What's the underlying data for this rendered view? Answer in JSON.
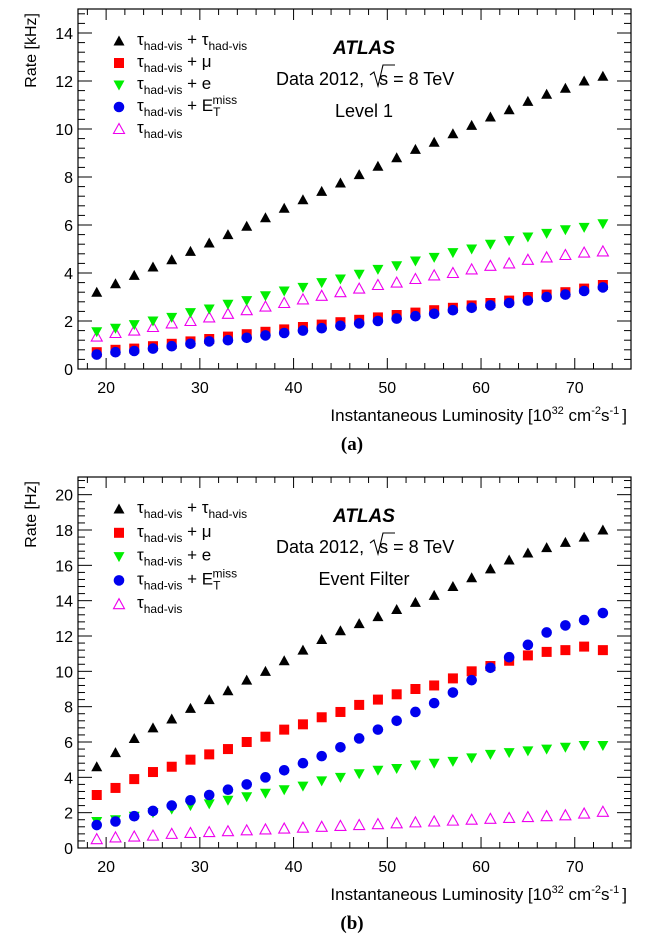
{
  "panels": [
    {
      "caption": "(a)",
      "chart_data": {
        "type": "scatter",
        "title": "",
        "experiment": "ATLAS",
        "run_info": {
          "prefix": "Data 2012,",
          "sqrt": "s",
          "energy": "= 8 TeV"
        },
        "trigger_level": "Level 1",
        "xlabel": {
          "main": "Instantaneous Luminosity [10",
          "sup1": "32",
          "mid": " cm",
          "sup2": "-2",
          "s": "s",
          "sup3": "-1",
          "end": "]"
        },
        "ylabel": "Rate [kHz]",
        "xlim": [
          17,
          76
        ],
        "ylim": [
          0,
          15
        ],
        "xticks": [
          20,
          30,
          40,
          50,
          60,
          70
        ],
        "yticks": [
          0,
          2,
          4,
          6,
          8,
          10,
          12,
          14
        ],
        "legend_position": "top-left",
        "x": [
          19,
          21,
          23,
          25,
          27,
          29,
          31,
          33,
          35,
          37,
          39,
          41,
          43,
          45,
          47,
          49,
          51,
          53,
          55,
          57,
          59,
          61,
          63,
          65,
          67,
          69,
          71,
          73
        ],
        "series": [
          {
            "name": "τhad-vis + τhad-vis",
            "legend": {
              "tau1": "τ",
              "sub1": "had-vis",
              "plus": " + ",
              "tau2": "τ",
              "sub2": "had-vis"
            },
            "marker": "triangle-up",
            "filled": true,
            "color": "#000000",
            "values": [
              3.2,
              3.55,
              3.9,
              4.25,
              4.55,
              4.9,
              5.25,
              5.6,
              5.95,
              6.3,
              6.7,
              7.05,
              7.4,
              7.75,
              8.1,
              8.45,
              8.8,
              9.15,
              9.45,
              9.8,
              10.15,
              10.5,
              10.8,
              11.15,
              11.45,
              11.7,
              12.0,
              12.2
            ]
          },
          {
            "name": "τhad-vis + μ",
            "legend": {
              "tau1": "τ",
              "sub1": "had-vis",
              "plus": " + μ"
            },
            "marker": "square",
            "filled": true,
            "color": "#ff0000",
            "values": [
              0.7,
              0.8,
              0.85,
              0.95,
              1.05,
              1.15,
              1.25,
              1.35,
              1.45,
              1.55,
              1.65,
              1.75,
              1.85,
              1.95,
              2.05,
              2.15,
              2.25,
              2.35,
              2.45,
              2.55,
              2.65,
              2.75,
              2.85,
              3.0,
              3.1,
              3.2,
              3.35,
              3.5
            ]
          },
          {
            "name": "τhad-vis + e",
            "legend": {
              "tau1": "τ",
              "sub1": "had-vis",
              "plus": " + e"
            },
            "marker": "triangle-down",
            "filled": true,
            "color": "#00ee00",
            "values": [
              1.55,
              1.7,
              1.85,
              2.0,
              2.15,
              2.35,
              2.5,
              2.7,
              2.85,
              3.05,
              3.25,
              3.4,
              3.6,
              3.75,
              3.95,
              4.15,
              4.3,
              4.5,
              4.65,
              4.85,
              5.0,
              5.2,
              5.35,
              5.5,
              5.65,
              5.8,
              5.9,
              6.05
            ]
          },
          {
            "name": "τhad-vis + ETmiss",
            "legend": {
              "tau1": "τ",
              "sub1": "had-vis",
              "plus": " + E",
              "sub2": "T",
              "sup2": "miss"
            },
            "marker": "circle",
            "filled": true,
            "color": "#0000ee",
            "values": [
              0.6,
              0.7,
              0.75,
              0.85,
              0.95,
              1.05,
              1.15,
              1.2,
              1.3,
              1.4,
              1.5,
              1.6,
              1.7,
              1.8,
              1.9,
              2.0,
              2.1,
              2.2,
              2.3,
              2.45,
              2.55,
              2.65,
              2.75,
              2.85,
              3.0,
              3.1,
              3.25,
              3.4
            ]
          },
          {
            "name": "τhad-vis",
            "legend": {
              "tau1": "τ",
              "sub1": "had-vis"
            },
            "marker": "triangle-up",
            "filled": false,
            "color": "#ee00ee",
            "values": [
              1.35,
              1.5,
              1.6,
              1.75,
              1.9,
              2.0,
              2.15,
              2.3,
              2.45,
              2.6,
              2.75,
              2.9,
              3.05,
              3.2,
              3.35,
              3.5,
              3.6,
              3.75,
              3.9,
              4.0,
              4.15,
              4.3,
              4.4,
              4.55,
              4.65,
              4.75,
              4.85,
              4.9
            ]
          }
        ]
      }
    },
    {
      "caption": "(b)",
      "chart_data": {
        "type": "scatter",
        "title": "",
        "experiment": "ATLAS",
        "run_info": {
          "prefix": "Data 2012,",
          "sqrt": "s",
          "energy": "= 8 TeV"
        },
        "trigger_level": "Event Filter",
        "xlabel": {
          "main": "Instantaneous Luminosity [10",
          "sup1": "32",
          "mid": " cm",
          "sup2": "-2",
          "s": "s",
          "sup3": "-1",
          "end": "]"
        },
        "ylabel": "Rate [Hz]",
        "xlim": [
          17,
          76
        ],
        "ylim": [
          0,
          21
        ],
        "xticks": [
          20,
          30,
          40,
          50,
          60,
          70
        ],
        "yticks": [
          0,
          2,
          4,
          6,
          8,
          10,
          12,
          14,
          16,
          18,
          20
        ],
        "legend_position": "top-left",
        "x": [
          19,
          21,
          23,
          25,
          27,
          29,
          31,
          33,
          35,
          37,
          39,
          41,
          43,
          45,
          47,
          49,
          51,
          53,
          55,
          57,
          59,
          61,
          63,
          65,
          67,
          69,
          71,
          73
        ],
        "series": [
          {
            "name": "τhad-vis + τhad-vis",
            "legend": {
              "tau1": "τ",
              "sub1": "had-vis",
              "plus": " + ",
              "tau2": "τ",
              "sub2": "had-vis"
            },
            "marker": "triangle-up",
            "filled": true,
            "color": "#000000",
            "values": [
              4.6,
              5.4,
              6.2,
              6.8,
              7.3,
              7.9,
              8.4,
              8.9,
              9.5,
              10.0,
              10.6,
              11.2,
              11.8,
              12.3,
              12.7,
              13.1,
              13.5,
              13.9,
              14.3,
              14.8,
              15.3,
              15.8,
              16.3,
              16.7,
              17.0,
              17.3,
              17.6,
              18.0
            ]
          },
          {
            "name": "τhad-vis + μ",
            "legend": {
              "tau1": "τ",
              "sub1": "had-vis",
              "plus": " + μ"
            },
            "marker": "square",
            "filled": true,
            "color": "#ff0000",
            "values": [
              3.0,
              3.4,
              3.9,
              4.3,
              4.6,
              5.0,
              5.3,
              5.6,
              6.0,
              6.3,
              6.7,
              7.0,
              7.4,
              7.7,
              8.1,
              8.4,
              8.7,
              9.0,
              9.2,
              9.6,
              10.0,
              10.3,
              10.6,
              10.9,
              11.1,
              11.2,
              11.4,
              11.2
            ]
          },
          {
            "name": "τhad-vis + e",
            "legend": {
              "tau1": "τ",
              "sub1": "had-vis",
              "plus": " + e"
            },
            "marker": "triangle-down",
            "filled": true,
            "color": "#00ee00",
            "values": [
              1.5,
              1.6,
              1.8,
              2.0,
              2.2,
              2.4,
              2.5,
              2.7,
              2.9,
              3.1,
              3.3,
              3.5,
              3.8,
              4.0,
              4.2,
              4.4,
              4.5,
              4.7,
              4.8,
              4.9,
              5.1,
              5.3,
              5.4,
              5.5,
              5.6,
              5.7,
              5.8,
              5.8
            ]
          },
          {
            "name": "τhad-vis + ETmiss",
            "legend": {
              "tau1": "τ",
              "sub1": "had-vis",
              "plus": " + E",
              "sub2": "T",
              "sup2": "miss"
            },
            "marker": "circle",
            "filled": true,
            "color": "#0000ee",
            "values": [
              1.3,
              1.5,
              1.8,
              2.1,
              2.4,
              2.7,
              3.0,
              3.3,
              3.6,
              4.0,
              4.4,
              4.8,
              5.2,
              5.7,
              6.2,
              6.7,
              7.2,
              7.7,
              8.2,
              8.8,
              9.5,
              10.2,
              10.8,
              11.5,
              12.2,
              12.6,
              12.9,
              13.3
            ]
          },
          {
            "name": "τhad-vis",
            "legend": {
              "tau1": "τ",
              "sub1": "had-vis"
            },
            "marker": "triangle-up",
            "filled": false,
            "color": "#ee00ee",
            "values": [
              0.5,
              0.6,
              0.65,
              0.7,
              0.8,
              0.85,
              0.9,
              0.95,
              1.0,
              1.05,
              1.1,
              1.15,
              1.2,
              1.25,
              1.3,
              1.35,
              1.4,
              1.45,
              1.5,
              1.55,
              1.6,
              1.65,
              1.7,
              1.75,
              1.8,
              1.85,
              1.95,
              2.05
            ]
          }
        ]
      }
    }
  ]
}
